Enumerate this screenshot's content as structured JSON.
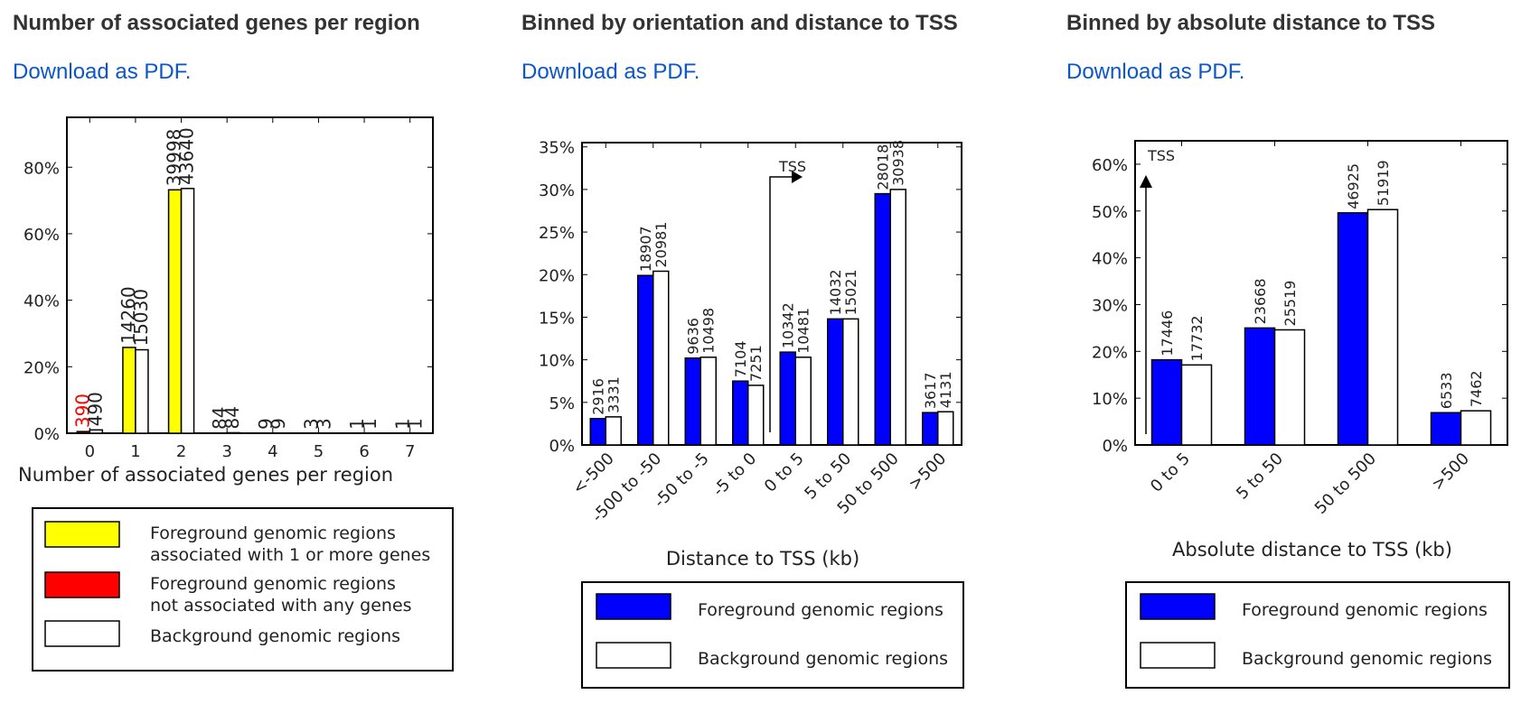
{
  "panels": [
    {
      "title": "Number of associated genes per region",
      "download": "Download as PDF."
    },
    {
      "title": "Binned by orientation and distance to TSS",
      "download": "Download as PDF."
    },
    {
      "title": "Binned by absolute distance to TSS",
      "download": "Download as PDF."
    }
  ],
  "chart_data": [
    {
      "type": "bar",
      "categories": [
        "0",
        "1",
        "2",
        "3",
        "4",
        "5",
        "6",
        "7"
      ],
      "series": [
        {
          "values": [
            0.5,
            25.8,
            73.2,
            0,
            0,
            0,
            0,
            0
          ],
          "labels": [
            "390",
            "14260",
            "39998",
            "",
            "",
            "",
            "",
            ""
          ],
          "label_color": [
            "#ff0000",
            "#222222",
            "#222222",
            "#222222",
            "#222222",
            "#222222",
            "#222222",
            "#222222"
          ]
        },
        {
          "values": [
            1.0,
            25.1,
            73.6,
            0.15,
            0.02,
            0.01,
            0.01,
            0.01
          ],
          "labels": [
            "490",
            "15030",
            "43640",
            "84",
            "9",
            "3",
            "1",
            "1"
          ]
        }
      ],
      "extra_labels": [
        {
          "category": "3",
          "series": 0,
          "text": "84"
        },
        {
          "category": "4",
          "series": 0,
          "text": "9"
        },
        {
          "category": "5",
          "series": 0,
          "text": "3"
        },
        {
          "category": "6",
          "series": 0,
          "text": "1"
        },
        {
          "category": "7",
          "series": 0,
          "text": "1"
        }
      ],
      "xlabel": "Number of associated genes per region",
      "ylabel": "",
      "ylim": [
        0,
        95
      ],
      "yticks": [
        "0%",
        "20%",
        "40%",
        "60%",
        "80%"
      ],
      "colors": {
        "yellow": "#ffff00",
        "red": "#ff0000",
        "white": "#ffffff"
      },
      "legend": {
        "position": "bottom",
        "entries": [
          {
            "color": "#ffff00",
            "lines": [
              "Foreground genomic regions",
              "associated with 1 or more genes"
            ]
          },
          {
            "color": "#ff0000",
            "lines": [
              "Foreground genomic regions",
              "not associated with any genes"
            ]
          },
          {
            "color": "#ffffff",
            "lines": [
              "Background genomic regions"
            ]
          }
        ]
      }
    },
    {
      "type": "bar",
      "categories": [
        "<-500",
        "-500 to -50",
        "-50 to -5",
        "-5 to 0",
        "0 to 5",
        "5 to 50",
        "50 to 500",
        ">500"
      ],
      "series": [
        {
          "name": "Foreground genomic regions",
          "color": "#0000ff",
          "values": [
            3.1,
            19.9,
            10.2,
            7.5,
            10.9,
            14.8,
            29.5,
            3.8
          ],
          "labels": [
            "2916",
            "18907",
            "9636",
            "7104",
            "10342",
            "14032",
            "28018",
            "3617"
          ]
        },
        {
          "name": "Background genomic regions",
          "color": "#ffffff",
          "values": [
            3.3,
            20.4,
            10.3,
            7.0,
            10.3,
            14.8,
            30.0,
            3.9
          ],
          "labels": [
            "3331",
            "20981",
            "10498",
            "7251",
            "10481",
            "15021",
            "30938",
            "4131"
          ]
        }
      ],
      "xlabel": "Distance to TSS (kb)",
      "ylabel": "",
      "ylim": [
        0,
        35.5
      ],
      "yticks": [
        "0%",
        "5%",
        "10%",
        "15%",
        "20%",
        "25%",
        "30%",
        "35%"
      ],
      "annotation": "TSS",
      "legend": {
        "position": "bottom"
      }
    },
    {
      "type": "bar",
      "categories": [
        "0 to 5",
        "5 to 50",
        "50 to 500",
        ">500"
      ],
      "series": [
        {
          "name": "Foreground genomic regions",
          "color": "#0000ff",
          "values": [
            18.2,
            25.0,
            49.6,
            6.9
          ],
          "labels": [
            "17446",
            "23668",
            "46925",
            "6533"
          ]
        },
        {
          "name": "Background genomic regions",
          "color": "#ffffff",
          "values": [
            17.1,
            24.6,
            50.3,
            7.3
          ],
          "labels": [
            "17732",
            "25519",
            "51919",
            "7462"
          ]
        }
      ],
      "xlabel": "Absolute distance to TSS (kb)",
      "ylabel": "",
      "ylim": [
        0,
        65
      ],
      "yticks": [
        "0%",
        "10%",
        "20%",
        "30%",
        "40%",
        "50%",
        "60%"
      ],
      "annotation": "TSS",
      "legend": {
        "position": "bottom"
      }
    }
  ]
}
